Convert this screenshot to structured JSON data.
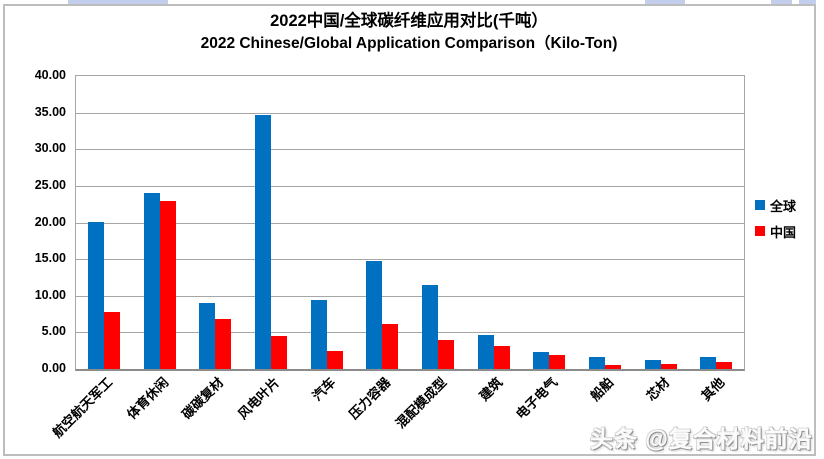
{
  "window": {
    "watermark": "头条 @复合材料前沿"
  },
  "chart_data": {
    "type": "bar",
    "title": "2022中国/全球碳纤维应用对比(千吨）",
    "subtitle": "2022 Chinese/Global Application Comparison（Kilo-Ton)",
    "categories": [
      "航空航天军工",
      "体育休闲",
      "碳碳复材",
      "风电叶片",
      "汽车",
      "压力容器",
      "混配模成型",
      "建筑",
      "电子电气",
      "船舶",
      "芯材",
      "其他"
    ],
    "series": [
      {
        "name": "全球",
        "color": "#0070C0",
        "values": [
          20.0,
          24.0,
          9.0,
          34.7,
          9.4,
          14.8,
          11.5,
          4.7,
          2.3,
          1.7,
          1.2,
          1.6
        ]
      },
      {
        "name": "中国",
        "color": "#FE0000",
        "values": [
          7.8,
          23.0,
          6.8,
          4.5,
          2.5,
          6.1,
          4.0,
          3.1,
          1.9,
          0.5,
          0.7,
          0.9
        ]
      }
    ],
    "xlabel": "",
    "ylabel": "",
    "ylim": [
      0,
      40
    ],
    "ytick_step": 5,
    "ytick_labels": [
      "40.00",
      "35.00",
      "30.00",
      "25.00",
      "20.00",
      "15.00",
      "10.00",
      "5.00",
      "0.00"
    ],
    "grid": true,
    "grid_color": "#A6A6A6",
    "axis_color": "#8C8C8C",
    "legend_position": "right"
  }
}
